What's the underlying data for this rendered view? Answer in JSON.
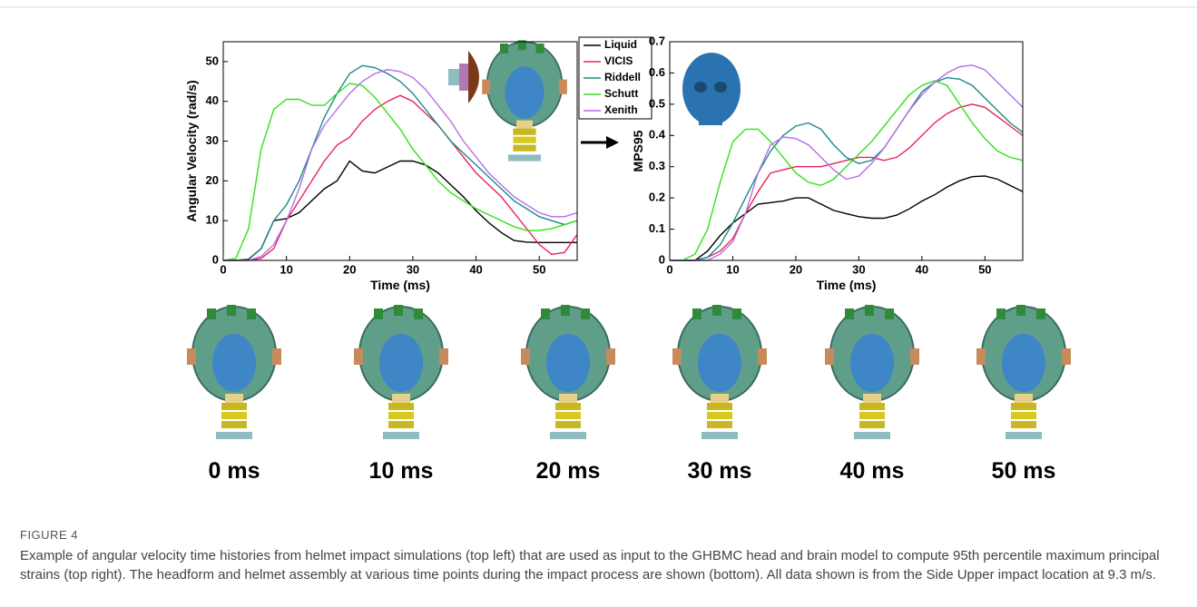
{
  "chart_data": [
    {
      "type": "line",
      "xlabel": "Time (ms)",
      "ylabel": "Angular Velocity (rad/s)",
      "x": [
        0,
        2,
        4,
        6,
        8,
        10,
        12,
        14,
        16,
        18,
        20,
        22,
        24,
        26,
        28,
        30,
        32,
        34,
        36,
        38,
        40,
        42,
        44,
        46,
        48,
        50,
        52,
        54,
        56
      ],
      "xlim": [
        0,
        56
      ],
      "xticks": [
        0,
        10,
        20,
        30,
        40,
        50
      ],
      "ylim": [
        0,
        55
      ],
      "yticks": [
        0,
        10,
        20,
        30,
        40,
        50
      ],
      "series": [
        {
          "name": "Liquid",
          "color": "#000000",
          "values": [
            0,
            0,
            0.3,
            3,
            10,
            10.5,
            12,
            15,
            18,
            20,
            25,
            22.5,
            22,
            23.5,
            25,
            25,
            24,
            22,
            19,
            16,
            12.5,
            9.5,
            7,
            5,
            4.6,
            4.5,
            4.5,
            4.5,
            4.5
          ]
        },
        {
          "name": "VICIS",
          "color": "#e8245a",
          "values": [
            0,
            0,
            0,
            0.5,
            3,
            10,
            15,
            20,
            25,
            29,
            31,
            35,
            38,
            40,
            41.5,
            40,
            37,
            34,
            30,
            26,
            22,
            19,
            16,
            12,
            8,
            4,
            1.5,
            2,
            6.5
          ]
        },
        {
          "name": "Riddell",
          "color": "#1a8a8c",
          "values": [
            0,
            0,
            0.2,
            3,
            10,
            14,
            20,
            28,
            36,
            42,
            47,
            49,
            48.5,
            47,
            45,
            42,
            38,
            34,
            30,
            27,
            24,
            21,
            18,
            15,
            13,
            11,
            10,
            9,
            10
          ]
        },
        {
          "name": "Schutt",
          "color": "#33e01a",
          "values": [
            0,
            0.5,
            8,
            28,
            38,
            40.5,
            40.5,
            39,
            39,
            42,
            44.5,
            44,
            41,
            37,
            33,
            28,
            24,
            20,
            17,
            15,
            13,
            11.5,
            10,
            8.5,
            7.5,
            7.5,
            8,
            9,
            10
          ]
        },
        {
          "name": "Xenith",
          "color": "#b56ee8",
          "values": [
            0,
            0,
            0,
            1,
            4,
            10,
            18,
            28,
            34,
            38,
            42,
            45,
            47,
            48,
            47.5,
            46,
            43,
            39,
            35,
            30,
            26,
            22,
            19,
            16,
            14,
            12,
            11,
            11,
            12
          ]
        }
      ]
    },
    {
      "type": "line",
      "xlabel": "Time (ms)",
      "ylabel": "MPS95",
      "x": [
        0,
        2,
        4,
        6,
        8,
        10,
        12,
        14,
        16,
        18,
        20,
        22,
        24,
        26,
        28,
        30,
        32,
        34,
        36,
        38,
        40,
        42,
        44,
        46,
        48,
        50,
        52,
        54,
        56
      ],
      "xlim": [
        0,
        56
      ],
      "xticks": [
        0,
        10,
        20,
        30,
        40,
        50
      ],
      "ylim": [
        0,
        0.7
      ],
      "yticks": [
        0,
        0.1,
        0.2,
        0.3,
        0.4,
        0.5,
        0.6,
        0.7
      ],
      "series": [
        {
          "color": "#000000",
          "values": [
            0,
            0,
            0,
            0.03,
            0.08,
            0.12,
            0.15,
            0.18,
            0.185,
            0.19,
            0.2,
            0.2,
            0.18,
            0.16,
            0.15,
            0.14,
            0.135,
            0.135,
            0.145,
            0.165,
            0.19,
            0.21,
            0.235,
            0.255,
            0.268,
            0.27,
            0.26,
            0.24,
            0.22
          ]
        },
        {
          "color": "#e8245a",
          "values": [
            0,
            0,
            0,
            0.01,
            0.03,
            0.07,
            0.15,
            0.22,
            0.28,
            0.29,
            0.3,
            0.3,
            0.3,
            0.31,
            0.32,
            0.33,
            0.33,
            0.32,
            0.33,
            0.36,
            0.4,
            0.44,
            0.47,
            0.49,
            0.5,
            0.49,
            0.46,
            0.43,
            0.4
          ]
        },
        {
          "color": "#1a8a8c",
          "values": [
            0,
            0,
            0,
            0.01,
            0.05,
            0.12,
            0.2,
            0.28,
            0.35,
            0.4,
            0.43,
            0.44,
            0.42,
            0.37,
            0.33,
            0.31,
            0.32,
            0.36,
            0.42,
            0.48,
            0.54,
            0.57,
            0.585,
            0.58,
            0.56,
            0.52,
            0.48,
            0.44,
            0.41
          ]
        },
        {
          "color": "#33e01a",
          "values": [
            0,
            0,
            0.02,
            0.1,
            0.25,
            0.38,
            0.42,
            0.42,
            0.38,
            0.33,
            0.28,
            0.25,
            0.24,
            0.26,
            0.3,
            0.34,
            0.38,
            0.43,
            0.48,
            0.53,
            0.56,
            0.575,
            0.56,
            0.5,
            0.44,
            0.39,
            0.35,
            0.33,
            0.32
          ]
        },
        {
          "color": "#b56ee8",
          "values": [
            0,
            0,
            0,
            0,
            0.02,
            0.06,
            0.15,
            0.28,
            0.37,
            0.395,
            0.39,
            0.37,
            0.33,
            0.29,
            0.26,
            0.27,
            0.31,
            0.36,
            0.42,
            0.48,
            0.53,
            0.57,
            0.6,
            0.62,
            0.625,
            0.61,
            0.57,
            0.53,
            0.49
          ]
        }
      ]
    }
  ],
  "frames": [
    "0 ms",
    "10 ms",
    "20 ms",
    "30 ms",
    "40 ms",
    "50 ms"
  ],
  "figure_label": "FIGURE 4",
  "caption": "Example of angular velocity time histories from helmet impact simulations (top left) that are used as input to the GHBMC head and brain model to compute 95th percentile maximum principal strains (top right). The headform and helmet assembly at various time points during the impact process are shown (bottom). All data shown is from the Side Upper impact location at 9.3 m/s."
}
